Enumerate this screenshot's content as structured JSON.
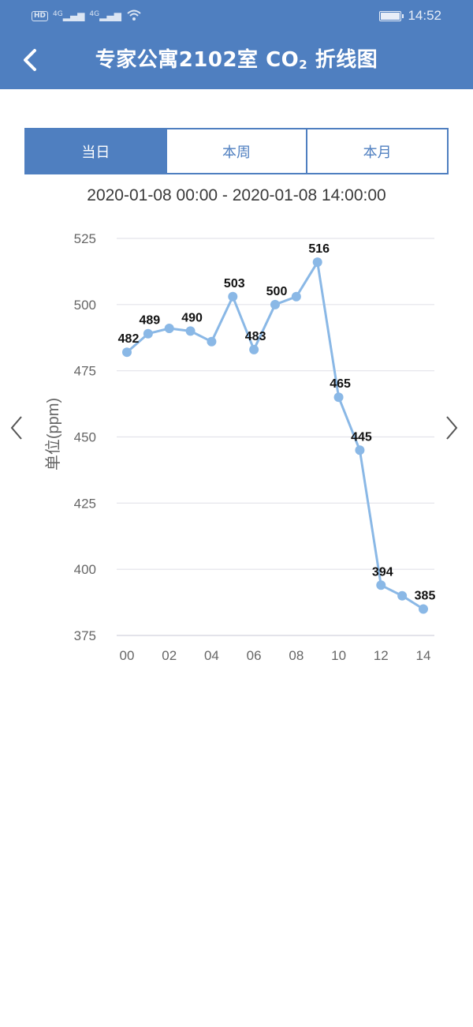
{
  "status_bar": {
    "hd": "HD",
    "net1": "4G",
    "net2": "4G",
    "time": "14:52"
  },
  "header": {
    "title_prefix": "专家公寓2102室 CO",
    "title_sub": "2",
    "title_suffix": " 折线图",
    "back_icon": "chevron-left-icon"
  },
  "tabs": [
    {
      "label": "当日",
      "active": true
    },
    {
      "label": "本周",
      "active": false
    },
    {
      "label": "本月",
      "active": false
    }
  ],
  "date_range": "2020-01-08 00:00 - 2020-01-08 14:00:00",
  "colors": {
    "accent": "#4f7fc0",
    "line": "#8ab8e6",
    "grid": "#e3e3ea"
  },
  "chart_data": {
    "type": "line",
    "ylabel": "单位(ppm)",
    "ylim": [
      375,
      525
    ],
    "yticks": [
      375,
      400,
      425,
      450,
      475,
      500,
      525
    ],
    "xlim": [
      0,
      14
    ],
    "xtick_values": [
      0,
      2,
      4,
      6,
      8,
      10,
      12,
      14
    ],
    "xtick_labels": [
      "00",
      "02",
      "04",
      "06",
      "08",
      "10",
      "12",
      "14"
    ],
    "grid": true,
    "series": [
      {
        "x": [
          0,
          1,
          2,
          3,
          4,
          5,
          6,
          7,
          8,
          9,
          10,
          11,
          12,
          13,
          14
        ],
        "values": [
          482,
          489,
          491,
          490,
          486,
          503,
          483,
          500,
          503,
          516,
          465,
          445,
          394,
          390,
          385
        ],
        "labels": [
          "482",
          "489",
          "",
          "490",
          "",
          "503",
          "483",
          "500",
          "",
          "516",
          "465",
          "445",
          "394",
          "",
          "385"
        ]
      }
    ]
  }
}
